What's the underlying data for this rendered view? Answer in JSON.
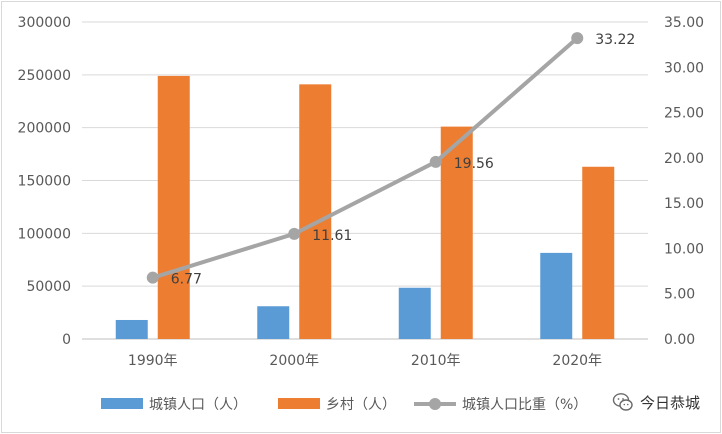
{
  "chart_data": {
    "type": "bar",
    "categories": [
      "1990年",
      "2000年",
      "2010年",
      "2020年"
    ],
    "series": [
      {
        "name": "城镇人口（人）",
        "kind": "bar",
        "axis": "left",
        "color": "#5b9bd5",
        "values": [
          18000,
          31000,
          48500,
          81500
        ]
      },
      {
        "name": "乡村（人）",
        "kind": "bar",
        "axis": "left",
        "color": "#ed7d31",
        "values": [
          249000,
          241000,
          201000,
          163000
        ]
      },
      {
        "name": "城镇人口比重（%）",
        "kind": "line",
        "axis": "right",
        "color": "#a5a5a5",
        "values": [
          6.77,
          11.61,
          19.56,
          33.22
        ],
        "labels": [
          "6.77",
          "11.61",
          "19.56",
          "33.22"
        ]
      }
    ],
    "y_left": {
      "lim": [
        0,
        300000
      ],
      "ticks": [
        "0",
        "50000",
        "100000",
        "150000",
        "200000",
        "250000",
        "300000"
      ]
    },
    "y_right": {
      "lim": [
        0,
        35
      ],
      "ticks": [
        "0.00",
        "5.00",
        "10.00",
        "15.00",
        "20.00",
        "25.00",
        "30.00",
        "35.00"
      ]
    },
    "grid": true,
    "legend": "bottom"
  },
  "watermark": {
    "text": "今日恭城",
    "icon": "wechat-icon"
  }
}
